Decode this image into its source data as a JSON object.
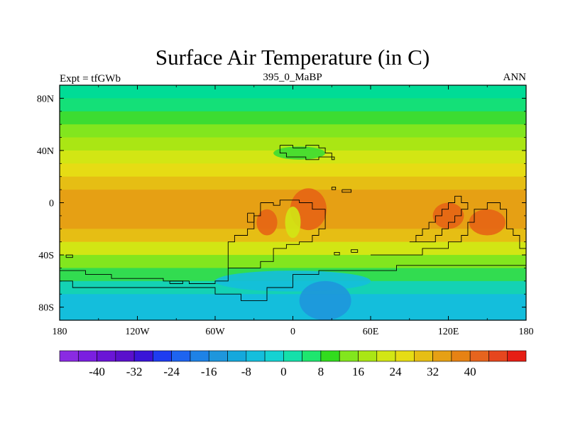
{
  "title": "Surface Air Temperature (in C)",
  "left_label": "Expt = tfGWb",
  "center_label": "395_0_MaBP",
  "right_label": "ANN",
  "lat_ticks": [
    {
      "label": "80N",
      "value": 80
    },
    {
      "label": "40N",
      "value": 40
    },
    {
      "label": "0",
      "value": 0
    },
    {
      "label": "40S",
      "value": -40
    },
    {
      "label": "80S",
      "value": -80
    }
  ],
  "lon_ticks": [
    {
      "label": "180",
      "value": -180
    },
    {
      "label": "120W",
      "value": -120
    },
    {
      "label": "60W",
      "value": -60
    },
    {
      "label": "0",
      "value": 0
    },
    {
      "label": "60E",
      "value": 60
    },
    {
      "label": "120E",
      "value": 120
    },
    {
      "label": "180",
      "value": 180
    }
  ],
  "colorbar": {
    "colors": [
      "#8a2be2",
      "#7a1fe0",
      "#6a15d6",
      "#5a10cc",
      "#3a14d8",
      "#1e3cf0",
      "#1e64f0",
      "#1e82e6",
      "#1e96dc",
      "#14a8dc",
      "#14bedc",
      "#14d2d2",
      "#14e0aa",
      "#1ee66e",
      "#32dc1e",
      "#82e61e",
      "#aae614",
      "#d2e614",
      "#e6dc14",
      "#e6be14",
      "#e6a014",
      "#e68214",
      "#e6641e",
      "#e6461e",
      "#e61e14"
    ],
    "labels": [
      {
        "text": "-40",
        "boundary": 2
      },
      {
        "text": "-32",
        "boundary": 4
      },
      {
        "text": "-24",
        "boundary": 6
      },
      {
        "text": "-16",
        "boundary": 8
      },
      {
        "text": "-8",
        "boundary": 10
      },
      {
        "text": "0",
        "boundary": 12
      },
      {
        "text": "8",
        "boundary": 14
      },
      {
        "text": "16",
        "boundary": 16
      },
      {
        "text": "24",
        "boundary": 18
      },
      {
        "text": "32",
        "boundary": 20
      },
      {
        "text": "40",
        "boundary": 22
      }
    ]
  },
  "temperature_bands": [
    {
      "lat_top": 90,
      "lat_bottom": 80,
      "color": "#00dc96"
    },
    {
      "lat_top": 80,
      "lat_bottom": 70,
      "color": "#14e078"
    },
    {
      "lat_top": 70,
      "lat_bottom": 60,
      "color": "#3cdc32"
    },
    {
      "lat_top": 60,
      "lat_bottom": 50,
      "color": "#82e61e"
    },
    {
      "lat_top": 50,
      "lat_bottom": 40,
      "color": "#aae614"
    },
    {
      "lat_top": 40,
      "lat_bottom": 30,
      "color": "#d2e614"
    },
    {
      "lat_top": 30,
      "lat_bottom": 20,
      "color": "#e6dc14"
    },
    {
      "lat_top": 20,
      "lat_bottom": 10,
      "color": "#e6be14"
    },
    {
      "lat_top": 10,
      "lat_bottom": -20,
      "color": "#e6a014"
    },
    {
      "lat_top": -20,
      "lat_bottom": -30,
      "color": "#e6be14"
    },
    {
      "lat_top": -30,
      "lat_bottom": -40,
      "color": "#d2e614"
    },
    {
      "lat_top": -40,
      "lat_bottom": -50,
      "color": "#82e61e"
    },
    {
      "lat_top": -50,
      "lat_bottom": -60,
      "color": "#32dc50"
    },
    {
      "lat_top": -60,
      "lat_bottom": -70,
      "color": "#14d2b4"
    },
    {
      "lat_top": -70,
      "lat_bottom": -90,
      "color": "#14bedc"
    }
  ],
  "warm_spots": [
    {
      "lon": -20,
      "lat": -15,
      "rx": 8,
      "ry": 10,
      "color": "#e66414"
    },
    {
      "lon": 12,
      "lat": -5,
      "rx": 14,
      "ry": 16,
      "color": "#e66414"
    },
    {
      "lon": 120,
      "lat": -10,
      "rx": 12,
      "ry": 10,
      "color": "#e66414"
    },
    {
      "lon": 150,
      "lat": -15,
      "rx": 14,
      "ry": 10,
      "color": "#e66414"
    },
    {
      "lon": 0,
      "lat": -15,
      "rx": 6,
      "ry": 12,
      "color": "#d2e614"
    },
    {
      "lon": 5,
      "lat": 38,
      "rx": 20,
      "ry": 5,
      "color": "#3cdc32"
    },
    {
      "lon": 0,
      "lat": -60,
      "rx": 60,
      "ry": 8,
      "color": "#14bedc"
    },
    {
      "lon": 25,
      "lat": -75,
      "rx": 20,
      "ry": 15,
      "color": "#1e96dc"
    }
  ],
  "coastlines": [
    [
      [
        -10,
        44
      ],
      [
        0,
        44
      ],
      [
        0,
        42
      ],
      [
        10,
        42
      ],
      [
        10,
        44
      ],
      [
        20,
        44
      ],
      [
        20,
        42
      ],
      [
        25,
        42
      ],
      [
        25,
        38
      ],
      [
        30,
        38
      ],
      [
        30,
        35
      ],
      [
        25,
        35
      ],
      [
        20,
        35
      ],
      [
        20,
        33
      ],
      [
        10,
        33
      ],
      [
        10,
        35
      ],
      [
        0,
        35
      ],
      [
        -5,
        35
      ],
      [
        -5,
        38
      ],
      [
        -10,
        38
      ],
      [
        -10,
        44
      ]
    ],
    [
      [
        30,
        35
      ],
      [
        32,
        35
      ],
      [
        32,
        33
      ],
      [
        30,
        33
      ],
      [
        30,
        35
      ]
    ],
    [
      [
        -25,
        0
      ],
      [
        -15,
        0
      ],
      [
        -15,
        -2
      ],
      [
        -10,
        -2
      ],
      [
        -10,
        2
      ],
      [
        5,
        2
      ],
      [
        5,
        0
      ],
      [
        15,
        0
      ],
      [
        15,
        -5
      ],
      [
        25,
        -5
      ],
      [
        25,
        -20
      ],
      [
        20,
        -20
      ],
      [
        20,
        -25
      ],
      [
        15,
        -25
      ],
      [
        15,
        -30
      ],
      [
        5,
        -30
      ],
      [
        5,
        -32
      ],
      [
        -5,
        -32
      ],
      [
        -5,
        -35
      ],
      [
        -15,
        -35
      ],
      [
        -15,
        -45
      ],
      [
        -25,
        -45
      ],
      [
        -25,
        -50
      ],
      [
        -50,
        -50
      ],
      [
        -50,
        -30
      ],
      [
        -45,
        -30
      ],
      [
        -45,
        -25
      ],
      [
        -35,
        -25
      ],
      [
        -35,
        -20
      ],
      [
        -30,
        -20
      ],
      [
        -30,
        -10
      ],
      [
        -25,
        -10
      ],
      [
        -25,
        0
      ]
    ],
    [
      [
        -35,
        -8
      ],
      [
        -30,
        -8
      ],
      [
        -30,
        -15
      ],
      [
        -35,
        -15
      ],
      [
        -35,
        -8
      ]
    ],
    [
      [
        -50,
        -50
      ],
      [
        -50,
        -60
      ],
      [
        -60,
        -60
      ],
      [
        -60,
        -62
      ],
      [
        -80,
        -62
      ],
      [
        -80,
        -60
      ],
      [
        -100,
        -60
      ],
      [
        -100,
        -58
      ],
      [
        -140,
        -58
      ],
      [
        -140,
        -55
      ],
      [
        -160,
        -55
      ],
      [
        -160,
        -52
      ],
      [
        -175,
        -52
      ],
      [
        -180,
        -52
      ]
    ],
    [
      [
        -180,
        -60
      ],
      [
        -170,
        -60
      ],
      [
        -170,
        -65
      ],
      [
        -160,
        -65
      ],
      [
        -140,
        -65
      ],
      [
        -120,
        -65
      ],
      [
        -100,
        -65
      ],
      [
        -80,
        -65
      ],
      [
        -60,
        -65
      ],
      [
        -60,
        -70
      ],
      [
        -40,
        -70
      ],
      [
        -40,
        -75
      ],
      [
        -20,
        -75
      ],
      [
        -20,
        -65
      ],
      [
        0,
        -65
      ],
      [
        0,
        -55
      ],
      [
        20,
        -55
      ],
      [
        20,
        -52
      ],
      [
        40,
        -52
      ],
      [
        60,
        -52
      ],
      [
        80,
        -52
      ],
      [
        80,
        -48
      ],
      [
        100,
        -48
      ],
      [
        120,
        -48
      ],
      [
        140,
        -48
      ],
      [
        160,
        -48
      ],
      [
        180,
        -48
      ]
    ],
    [
      [
        60,
        -40
      ],
      [
        80,
        -40
      ],
      [
        100,
        -40
      ],
      [
        100,
        -35
      ],
      [
        120,
        -35
      ],
      [
        120,
        -30
      ],
      [
        130,
        -30
      ],
      [
        130,
        -25
      ],
      [
        135,
        -25
      ],
      [
        135,
        -15
      ],
      [
        140,
        -15
      ],
      [
        140,
        -5
      ],
      [
        150,
        -5
      ],
      [
        150,
        0
      ],
      [
        160,
        0
      ],
      [
        160,
        -5
      ],
      [
        165,
        -5
      ],
      [
        165,
        -20
      ],
      [
        170,
        -20
      ],
      [
        170,
        -25
      ],
      [
        175,
        -25
      ],
      [
        175,
        -35
      ],
      [
        180,
        -35
      ]
    ],
    [
      [
        90,
        -30
      ],
      [
        95,
        -30
      ],
      [
        95,
        -25
      ],
      [
        100,
        -25
      ],
      [
        100,
        -20
      ],
      [
        105,
        -20
      ],
      [
        105,
        -15
      ],
      [
        110,
        -15
      ],
      [
        110,
        -10
      ],
      [
        115,
        -10
      ],
      [
        115,
        -5
      ],
      [
        120,
        -5
      ],
      [
        120,
        0
      ],
      [
        125,
        0
      ],
      [
        125,
        5
      ],
      [
        130,
        5
      ],
      [
        130,
        0
      ],
      [
        135,
        0
      ],
      [
        135,
        -5
      ],
      [
        130,
        -5
      ],
      [
        130,
        -10
      ],
      [
        125,
        -10
      ],
      [
        125,
        -15
      ],
      [
        120,
        -15
      ],
      [
        120,
        -20
      ],
      [
        115,
        -20
      ],
      [
        115,
        -25
      ],
      [
        110,
        -25
      ],
      [
        110,
        -30
      ],
      [
        100,
        -30
      ],
      [
        95,
        -30
      ],
      [
        90,
        -30
      ]
    ],
    [
      [
        32,
        -40
      ],
      [
        36,
        -40
      ],
      [
        36,
        -38
      ],
      [
        32,
        -38
      ],
      [
        32,
        -40
      ]
    ],
    [
      [
        45,
        -38
      ],
      [
        50,
        -38
      ],
      [
        50,
        -36
      ],
      [
        45,
        -36
      ],
      [
        45,
        -38
      ]
    ],
    [
      [
        -175,
        -42
      ],
      [
        -170,
        -42
      ],
      [
        -170,
        -40
      ],
      [
        -175,
        -40
      ],
      [
        -175,
        -42
      ]
    ],
    [
      [
        -95,
        -62
      ],
      [
        -85,
        -62
      ],
      [
        -85,
        -60
      ],
      [
        -95,
        -60
      ],
      [
        -95,
        -62
      ]
    ],
    [
      [
        30,
        12
      ],
      [
        33,
        12
      ],
      [
        33,
        10
      ],
      [
        30,
        10
      ],
      [
        30,
        12
      ]
    ],
    [
      [
        38,
        10
      ],
      [
        45,
        10
      ],
      [
        45,
        8
      ],
      [
        38,
        8
      ],
      [
        38,
        10
      ]
    ]
  ]
}
